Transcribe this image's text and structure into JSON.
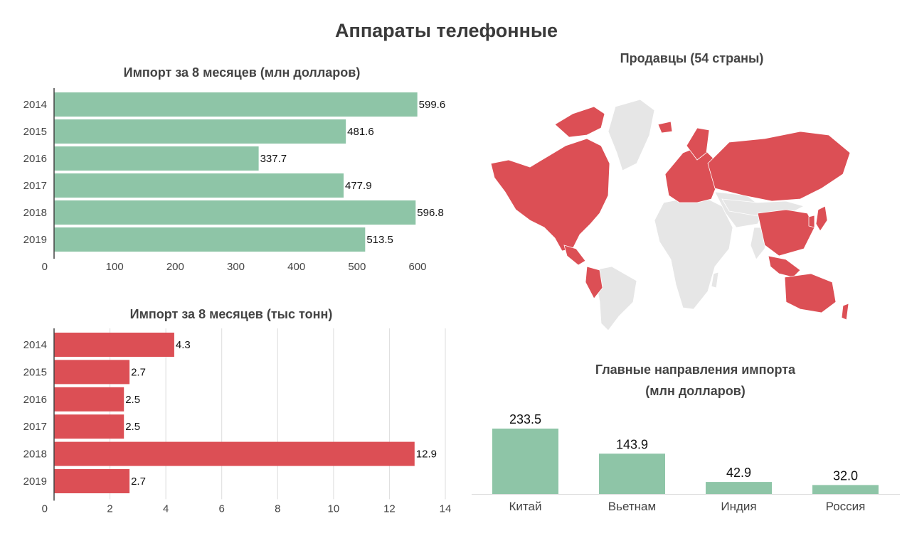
{
  "page_title": "Аппараты телефонные",
  "colors": {
    "green": "#8ec5a7",
    "red": "#dc4f55",
    "gray_land": "#e6e6e6",
    "grid": "#dddddd"
  },
  "chart_data": [
    {
      "type": "bar",
      "orientation": "horizontal",
      "title": "Импорт за 8 месяцев (млн долларов)",
      "categories": [
        "2014",
        "2015",
        "2016",
        "2017",
        "2018",
        "2019"
      ],
      "values": [
        599.6,
        481.6,
        337.7,
        477.9,
        596.8,
        513.5
      ],
      "value_labels": [
        "599.6",
        "481.6",
        "337.7",
        "477.9",
        "596.8",
        "513.5"
      ],
      "x_ticks": [
        "0",
        "100",
        "200",
        "300",
        "400",
        "500",
        "600"
      ],
      "xlim": [
        0,
        600
      ],
      "grid": false,
      "color": "#8ec5a7"
    },
    {
      "type": "bar",
      "orientation": "horizontal",
      "title": "Импорт за 8 месяцев (тыс тонн)",
      "categories": [
        "2014",
        "2015",
        "2016",
        "2017",
        "2018",
        "2019"
      ],
      "values": [
        4.3,
        2.7,
        2.5,
        2.5,
        12.9,
        2.7
      ],
      "value_labels": [
        "4.3",
        "2.7",
        "2.5",
        "2.5",
        "12.9",
        "2.7"
      ],
      "x_ticks": [
        "0",
        "2",
        "4",
        "6",
        "8",
        "10",
        "12",
        "14"
      ],
      "xlim": [
        0,
        14
      ],
      "grid": true,
      "color": "#dc4f55"
    },
    {
      "type": "map",
      "title": "Продавцы (54 страны)",
      "highlight_color": "#dc4f55",
      "highlighted_regions": [
        "North America",
        "Europe",
        "Russia",
        "China",
        "Peru",
        "Australia",
        "Southeast Asia",
        "Japan",
        "Korea"
      ]
    },
    {
      "type": "bar",
      "orientation": "vertical",
      "title_line1": "Главные направления импорта",
      "title_line2": "(млн долларов)",
      "categories": [
        "Китай",
        "Вьетнам",
        "Индия",
        "Россия"
      ],
      "values": [
        233.5,
        143.9,
        42.9,
        32.0
      ],
      "value_labels": [
        "233.5",
        "143.9",
        "42.9",
        "32.0"
      ],
      "ylim": [
        0,
        233.5
      ],
      "color": "#8ec5a7"
    }
  ]
}
